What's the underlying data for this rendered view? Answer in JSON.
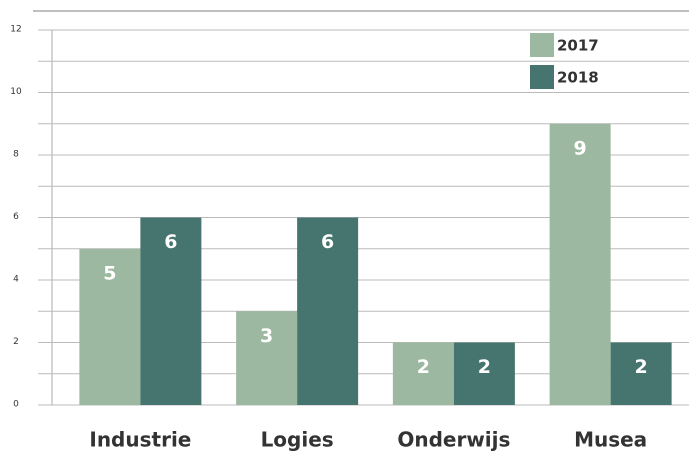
{
  "chart_data": {
    "type": "bar",
    "categories": [
      "Industrie",
      "Logies",
      "Onderwijs",
      "Musea"
    ],
    "series": [
      {
        "name": "2017",
        "color": "#9db8a0",
        "values": [
          5,
          3,
          2,
          9
        ]
      },
      {
        "name": "2018",
        "color": "#46756f",
        "values": [
          6,
          6,
          2,
          2
        ]
      }
    ],
    "ylim": [
      0,
      12
    ],
    "yticks": [
      0,
      2,
      4,
      6,
      8,
      10,
      12
    ],
    "minor_yticks": [
      1,
      3,
      5,
      7,
      9,
      11
    ],
    "grid": true,
    "legend": "top-right"
  }
}
